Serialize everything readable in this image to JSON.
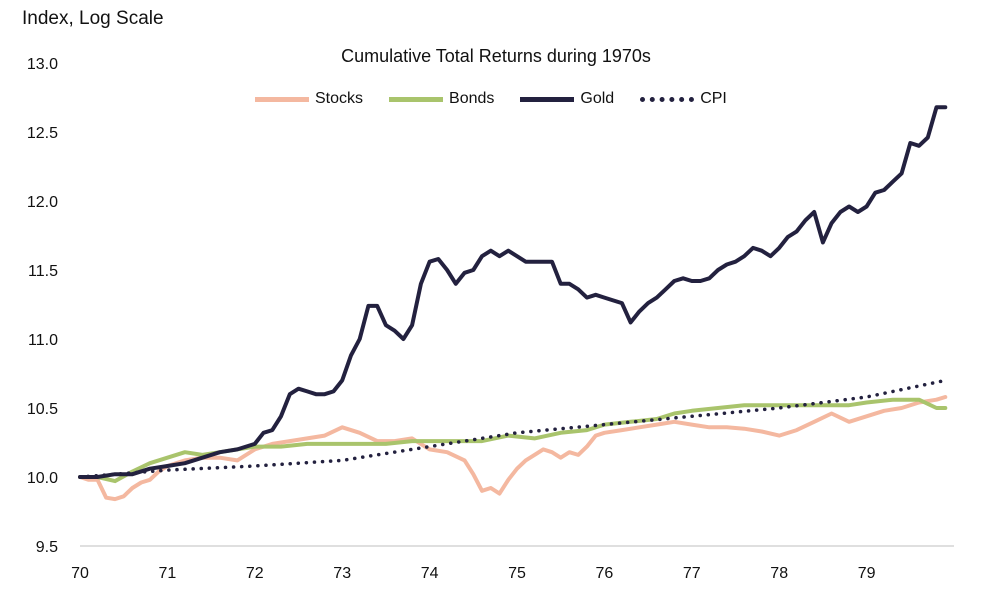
{
  "chart_data": {
    "type": "line",
    "title": "Cumulative Total Returns during 1970s",
    "ylabel": "Index, Log Scale",
    "xlabel": "",
    "ylim": [
      9.5,
      13.0
    ],
    "xlim": [
      70,
      80
    ],
    "yticks": [
      "9.5",
      "10.0",
      "10.5",
      "11.0",
      "11.5",
      "12.0",
      "12.5",
      "13.0"
    ],
    "xticks": [
      "70",
      "71",
      "72",
      "73",
      "74",
      "75",
      "76",
      "77",
      "78",
      "79"
    ],
    "legend_position": "top-center",
    "grid": false,
    "series": [
      {
        "name": "Stocks",
        "color": "#f4b8a0",
        "style": "solid",
        "x": [
          70.0,
          70.1,
          70.2,
          70.3,
          70.4,
          70.5,
          70.6,
          70.7,
          70.8,
          70.9,
          71.0,
          71.2,
          71.4,
          71.6,
          71.8,
          72.0,
          72.2,
          72.4,
          72.6,
          72.8,
          73.0,
          73.2,
          73.4,
          73.6,
          73.8,
          74.0,
          74.2,
          74.4,
          74.5,
          74.6,
          74.7,
          74.8,
          74.9,
          75.0,
          75.1,
          75.2,
          75.3,
          75.4,
          75.5,
          75.6,
          75.7,
          75.8,
          75.9,
          76.0,
          76.2,
          76.4,
          76.6,
          76.8,
          77.0,
          77.2,
          77.4,
          77.6,
          77.8,
          78.0,
          78.2,
          78.4,
          78.6,
          78.8,
          79.0,
          79.2,
          79.4,
          79.6,
          79.8,
          79.9
        ],
        "y": [
          10.0,
          9.98,
          9.98,
          9.85,
          9.84,
          9.86,
          9.92,
          9.96,
          9.98,
          10.04,
          10.08,
          10.12,
          10.14,
          10.14,
          10.12,
          10.2,
          10.24,
          10.26,
          10.28,
          10.3,
          10.36,
          10.32,
          10.26,
          10.26,
          10.28,
          10.2,
          10.18,
          10.12,
          10.02,
          9.9,
          9.92,
          9.88,
          9.98,
          10.06,
          10.12,
          10.16,
          10.2,
          10.18,
          10.14,
          10.18,
          10.16,
          10.22,
          10.3,
          10.32,
          10.34,
          10.36,
          10.38,
          10.4,
          10.38,
          10.36,
          10.36,
          10.35,
          10.33,
          10.3,
          10.34,
          10.4,
          10.46,
          10.4,
          10.44,
          10.48,
          10.5,
          10.54,
          10.56,
          10.58
        ]
      },
      {
        "name": "Bonds",
        "color": "#a9c46c",
        "style": "solid",
        "x": [
          70.0,
          70.2,
          70.4,
          70.6,
          70.8,
          71.0,
          71.2,
          71.4,
          71.6,
          71.8,
          72.0,
          72.3,
          72.6,
          72.9,
          73.2,
          73.5,
          73.8,
          74.0,
          74.3,
          74.6,
          74.9,
          75.2,
          75.5,
          75.8,
          76.0,
          76.3,
          76.6,
          76.8,
          77.0,
          77.3,
          77.6,
          77.9,
          78.2,
          78.5,
          78.8,
          79.0,
          79.3,
          79.6,
          79.8,
          79.9
        ],
        "y": [
          10.0,
          10.0,
          9.97,
          10.04,
          10.1,
          10.14,
          10.18,
          10.16,
          10.18,
          10.2,
          10.22,
          10.22,
          10.24,
          10.24,
          10.24,
          10.24,
          10.26,
          10.26,
          10.26,
          10.26,
          10.3,
          10.28,
          10.32,
          10.34,
          10.38,
          10.4,
          10.42,
          10.46,
          10.48,
          10.5,
          10.52,
          10.52,
          10.52,
          10.52,
          10.52,
          10.54,
          10.56,
          10.56,
          10.5,
          10.5
        ]
      },
      {
        "name": "Gold",
        "color": "#23213f",
        "style": "solid",
        "x": [
          70.0,
          70.2,
          70.4,
          70.6,
          70.8,
          71.0,
          71.2,
          71.4,
          71.6,
          71.8,
          72.0,
          72.1,
          72.2,
          72.3,
          72.4,
          72.5,
          72.6,
          72.7,
          72.8,
          72.9,
          73.0,
          73.1,
          73.2,
          73.3,
          73.4,
          73.5,
          73.6,
          73.7,
          73.8,
          73.9,
          74.0,
          74.1,
          74.2,
          74.3,
          74.4,
          74.5,
          74.6,
          74.7,
          74.8,
          74.9,
          75.0,
          75.1,
          75.2,
          75.3,
          75.4,
          75.5,
          75.6,
          75.7,
          75.8,
          75.9,
          76.0,
          76.1,
          76.2,
          76.3,
          76.4,
          76.5,
          76.6,
          76.7,
          76.8,
          76.9,
          77.0,
          77.1,
          77.2,
          77.3,
          77.4,
          77.5,
          77.6,
          77.7,
          77.8,
          77.9,
          78.0,
          78.1,
          78.2,
          78.3,
          78.4,
          78.5,
          78.6,
          78.7,
          78.8,
          78.9,
          79.0,
          79.1,
          79.2,
          79.3,
          79.4,
          79.5,
          79.6,
          79.7,
          79.8,
          79.9
        ],
        "y": [
          10.0,
          10.0,
          10.02,
          10.02,
          10.06,
          10.08,
          10.1,
          10.14,
          10.18,
          10.2,
          10.24,
          10.32,
          10.34,
          10.44,
          10.6,
          10.64,
          10.62,
          10.6,
          10.6,
          10.62,
          10.7,
          10.88,
          11.0,
          11.24,
          11.24,
          11.1,
          11.06,
          11.0,
          11.1,
          11.4,
          11.56,
          11.58,
          11.5,
          11.4,
          11.48,
          11.5,
          11.6,
          11.64,
          11.6,
          11.64,
          11.6,
          11.56,
          11.56,
          11.56,
          11.56,
          11.4,
          11.4,
          11.36,
          11.3,
          11.32,
          11.3,
          11.28,
          11.26,
          11.12,
          11.2,
          11.26,
          11.3,
          11.36,
          11.42,
          11.44,
          11.42,
          11.42,
          11.44,
          11.5,
          11.54,
          11.56,
          11.6,
          11.66,
          11.64,
          11.6,
          11.66,
          11.74,
          11.78,
          11.86,
          11.92,
          11.7,
          11.84,
          11.92,
          11.96,
          11.92,
          11.96,
          12.06,
          12.08,
          12.14,
          12.2,
          12.42,
          12.4,
          12.46,
          12.68,
          12.68
        ]
      },
      {
        "name": "CPI",
        "color": "#23213f",
        "style": "dotted",
        "x": [
          70.0,
          71.0,
          72.0,
          73.0,
          74.0,
          75.0,
          76.0,
          77.0,
          78.0,
          79.0,
          79.9
        ],
        "y": [
          10.0,
          10.05,
          10.08,
          10.12,
          10.22,
          10.32,
          10.38,
          10.44,
          10.5,
          10.58,
          10.7
        ]
      }
    ]
  }
}
